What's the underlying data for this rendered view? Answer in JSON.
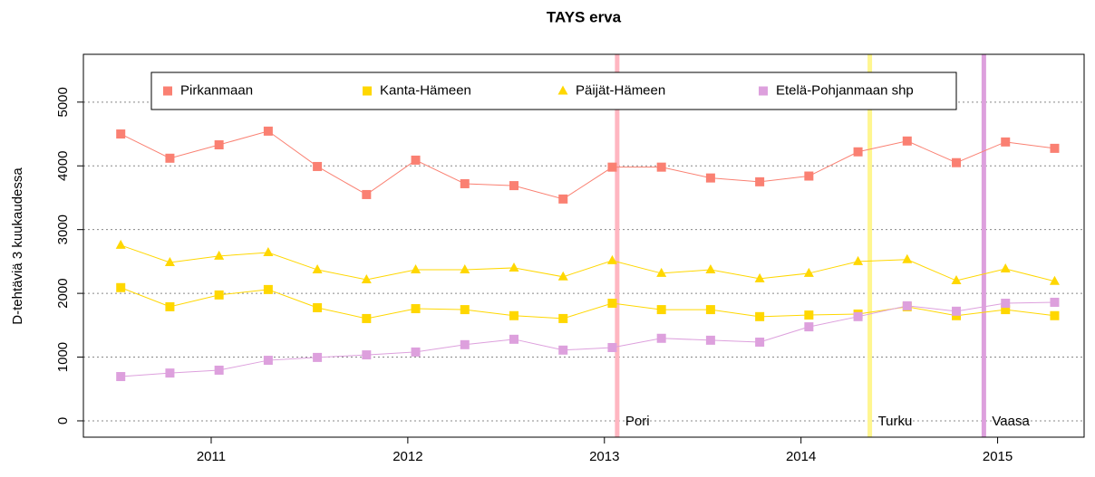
{
  "chart_data": {
    "type": "line",
    "title": "TAYS erva",
    "ylabel": "D-tehtäviä 3 kuukaudessa",
    "x": [
      2010.54,
      2010.79,
      2011.04,
      2011.29,
      2011.54,
      2011.79,
      2012.04,
      2012.29,
      2012.54,
      2012.79,
      2013.04,
      2013.29,
      2013.54,
      2013.79,
      2014.04,
      2014.29,
      2014.54,
      2014.79,
      2015.04,
      2015.29
    ],
    "xlim": [
      2010.35,
      2015.44
    ],
    "xticks": [
      2011,
      2012,
      2013,
      2014,
      2015
    ],
    "ylim": [
      -256,
      5750
    ],
    "yticks": [
      0,
      1000,
      2000,
      3000,
      4000,
      5000
    ],
    "grid": true,
    "legend": "top",
    "series": [
      {
        "name": "Pirkanmaan",
        "color": "#fa8072",
        "marker": "square",
        "values": [
          4500,
          4120,
          4330,
          4545,
          3990,
          3550,
          4090,
          3720,
          3690,
          3480,
          3980,
          3980,
          3810,
          3750,
          3840,
          4220,
          4390,
          4050,
          4375,
          4275
        ]
      },
      {
        "name": "Kanta-Hämeen",
        "color": "#ffd700",
        "marker": "square",
        "values": [
          2090,
          1790,
          1975,
          2060,
          1775,
          1605,
          1760,
          1745,
          1650,
          1605,
          1845,
          1745,
          1745,
          1635,
          1660,
          1675,
          1790,
          1650,
          1745,
          1650
        ]
      },
      {
        "name": "Päijät-Hämeen",
        "color": "#ffd700",
        "marker": "triangle",
        "values": [
          2755,
          2485,
          2585,
          2640,
          2370,
          2215,
          2370,
          2370,
          2400,
          2260,
          2515,
          2315,
          2370,
          2230,
          2315,
          2500,
          2530,
          2200,
          2385,
          2190
        ]
      },
      {
        "name": "Etelä-Pohjanmaan shp",
        "color": "#dda0dd",
        "marker": "square",
        "values": [
          695,
          750,
          795,
          950,
          995,
          1035,
          1080,
          1195,
          1280,
          1110,
          1150,
          1295,
          1265,
          1235,
          1475,
          1635,
          1805,
          1720,
          1845,
          1860
        ]
      }
    ],
    "vlines": [
      {
        "x": 2013.065,
        "label": "Pori",
        "color": "#ffb6c1"
      },
      {
        "x": 2014.35,
        "label": "Turku",
        "color": "#fff68f"
      },
      {
        "x": 2014.93,
        "label": "Vaasa",
        "color": "#dda0dd"
      }
    ]
  }
}
